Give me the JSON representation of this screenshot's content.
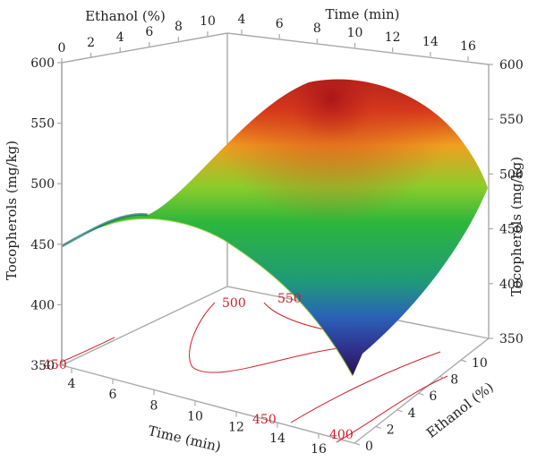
{
  "chart_data": {
    "type": "surface",
    "x_label": "Time (min)",
    "x_ticks": [
      4,
      6,
      8,
      10,
      12,
      14,
      16
    ],
    "y_label": "Ethanol (%)",
    "y_ticks": [
      0,
      2,
      4,
      6,
      8,
      10
    ],
    "z_label": "Tocopherols (mg/kg)",
    "z_ticks": [
      350,
      400,
      450,
      500,
      550,
      600
    ],
    "z_range": [
      350,
      600
    ],
    "surface_points": [
      {
        "time": 4,
        "ethanol": 0,
        "tocopherols": 448
      },
      {
        "time": 10,
        "ethanol": 0,
        "tocopherols": 470
      },
      {
        "time": 16,
        "ethanol": 0,
        "tocopherols": 362
      },
      {
        "time": 4,
        "ethanol": 10,
        "tocopherols": 495
      },
      {
        "time": 9,
        "ethanol": 10,
        "tocopherols": 585
      },
      {
        "time": 16,
        "ethanol": 10,
        "tocopherols": 495
      }
    ],
    "contour_labels": [
      "400",
      "450",
      "500",
      "550",
      "450"
    ],
    "colors": {
      "surface_low": "#3b1e6e",
      "surface_mid": "#2dbb3d",
      "surface_high": "#b01c1c",
      "contour": "#d0202a",
      "axis": "#a9a9a9"
    }
  }
}
